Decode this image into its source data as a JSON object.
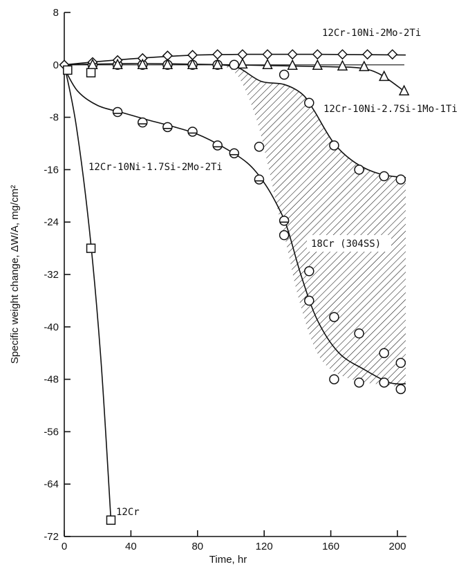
{
  "chart_data": {
    "type": "line",
    "xlabel": "Time, hr",
    "ylabel": "Specific weight change, ΔW/A, mg/cm²",
    "xlim": [
      0,
      205
    ],
    "ylim": [
      -72,
      8
    ],
    "x_ticks": [
      0,
      40,
      80,
      120,
      160,
      200
    ],
    "y_ticks": [
      8,
      0,
      -8,
      -16,
      -24,
      -32,
      -40,
      -48,
      -56,
      -64,
      -72
    ],
    "series": [
      {
        "name": "12Cr-10Ni-2Mo-2Ti",
        "marker": "diamond",
        "points": [
          [
            0,
            0
          ],
          [
            17,
            0.4
          ],
          [
            32,
            0.7
          ],
          [
            47,
            1.0
          ],
          [
            62,
            1.4
          ],
          [
            77,
            1.5
          ],
          [
            92,
            1.6
          ],
          [
            107,
            1.6
          ],
          [
            122,
            1.6
          ],
          [
            137,
            1.6
          ],
          [
            152,
            1.6
          ],
          [
            167,
            1.6
          ],
          [
            182,
            1.6
          ],
          [
            197,
            1.6
          ]
        ],
        "curve": [
          [
            0,
            0
          ],
          [
            20,
            0.5
          ],
          [
            50,
            1.1
          ],
          [
            80,
            1.5
          ],
          [
            110,
            1.6
          ],
          [
            150,
            1.6
          ],
          [
            205,
            1.5
          ]
        ]
      },
      {
        "name": "12Cr-10Ni-2.7Si-1Mo-1Ti",
        "marker": "triangle",
        "points": [
          [
            17,
            0
          ],
          [
            32,
            0
          ],
          [
            47,
            0
          ],
          [
            62,
            0
          ],
          [
            77,
            0
          ],
          [
            92,
            0
          ],
          [
            107,
            0.1
          ],
          [
            122,
            0
          ],
          [
            137,
            -0.1
          ],
          [
            152,
            -0.1
          ],
          [
            167,
            -0.2
          ],
          [
            180,
            -0.3
          ],
          [
            192,
            -1.8
          ],
          [
            204,
            -4.0
          ]
        ],
        "curve": [
          [
            0,
            0
          ],
          [
            40,
            0.2
          ],
          [
            80,
            0.1
          ],
          [
            120,
            -0.1
          ],
          [
            160,
            -0.3
          ],
          [
            178,
            -0.5
          ],
          [
            190,
            -1.5
          ],
          [
            204,
            -4.0
          ]
        ]
      },
      {
        "name": "12Cr-10Ni-1.7Si-2Mo-2Ti",
        "marker": "circle-flat",
        "points": [
          [
            32,
            -7.2
          ],
          [
            47,
            -8.8
          ],
          [
            62,
            -9.5
          ],
          [
            77,
            -10.2
          ],
          [
            92,
            -12.3
          ],
          [
            102,
            -13.5
          ],
          [
            117,
            -17.5
          ],
          [
            132,
            -23.8
          ]
        ],
        "curve": [
          [
            0,
            -0.5
          ],
          [
            8,
            -4
          ],
          [
            20,
            -6.2
          ],
          [
            35,
            -7.3
          ],
          [
            50,
            -8.4
          ],
          [
            65,
            -9.4
          ],
          [
            80,
            -10.6
          ],
          [
            95,
            -12.5
          ],
          [
            110,
            -15
          ],
          [
            120,
            -18
          ],
          [
            128,
            -21.5
          ],
          [
            134,
            -25
          ],
          [
            142,
            -32
          ],
          [
            152,
            -39
          ],
          [
            165,
            -44
          ],
          [
            180,
            -46.5
          ],
          [
            195,
            -48.5
          ],
          [
            205,
            -48.7
          ]
        ]
      },
      {
        "name": "12Cr",
        "marker": "square",
        "points": [
          [
            2,
            -0.8
          ],
          [
            16,
            -1.2
          ],
          [
            16,
            -28
          ],
          [
            28,
            -69.5
          ]
        ],
        "curve": [
          [
            0,
            0
          ],
          [
            7,
            -9
          ],
          [
            15,
            -25
          ],
          [
            22,
            -45
          ],
          [
            28,
            -69.5
          ]
        ]
      }
    ],
    "shaded_region": {
      "label": "18Cr (304SS)",
      "hatch": "diagonal",
      "circle_points": [
        [
          17,
          0
        ],
        [
          32,
          0
        ],
        [
          47,
          0
        ],
        [
          62,
          0
        ],
        [
          77,
          0
        ],
        [
          92,
          0
        ],
        [
          102,
          0
        ],
        [
          117,
          -12.5
        ],
        [
          132,
          -1.5
        ],
        [
          147,
          -5.8
        ],
        [
          162,
          -12.3
        ],
        [
          177,
          -16
        ],
        [
          192,
          -17
        ],
        [
          202,
          -17.5
        ],
        [
          132,
          -26
        ],
        [
          147,
          -31.5
        ],
        [
          147,
          -36
        ],
        [
          162,
          -38.5
        ],
        [
          177,
          -41
        ],
        [
          192,
          -44
        ],
        [
          202,
          -45.5
        ],
        [
          162,
          -48
        ],
        [
          177,
          -48.5
        ],
        [
          192,
          -48.5
        ],
        [
          202,
          -49.5
        ]
      ],
      "upper_boundary": [
        [
          95,
          0
        ],
        [
          105,
          -0.5
        ],
        [
          118,
          -2.5
        ],
        [
          132,
          -3
        ],
        [
          143,
          -4.5
        ],
        [
          150,
          -7
        ],
        [
          162,
          -12
        ],
        [
          175,
          -15
        ],
        [
          190,
          -16.7
        ],
        [
          205,
          -17.2
        ]
      ],
      "lower_boundary": [
        [
          95,
          0
        ],
        [
          105,
          -2
        ],
        [
          115,
          -8
        ],
        [
          122,
          -15
        ],
        [
          128,
          -22
        ],
        [
          133,
          -27
        ],
        [
          140,
          -35
        ],
        [
          150,
          -43
        ],
        [
          160,
          -46.5
        ],
        [
          175,
          -48.2
        ],
        [
          190,
          -48.8
        ],
        [
          205,
          -49.2
        ]
      ]
    },
    "annotations": [
      {
        "text": "12Cr-10Ni-2Mo-2Ti"
      },
      {
        "text": "12Cr-10Ni-2.7Si-1Mo-1Ti"
      },
      {
        "text": "12Cr-10Ni-1.7Si-2Mo-2Ti"
      },
      {
        "text": "18Cr (304SS)"
      },
      {
        "text": "12Cr"
      }
    ],
    "grid": false,
    "legend": "none"
  }
}
